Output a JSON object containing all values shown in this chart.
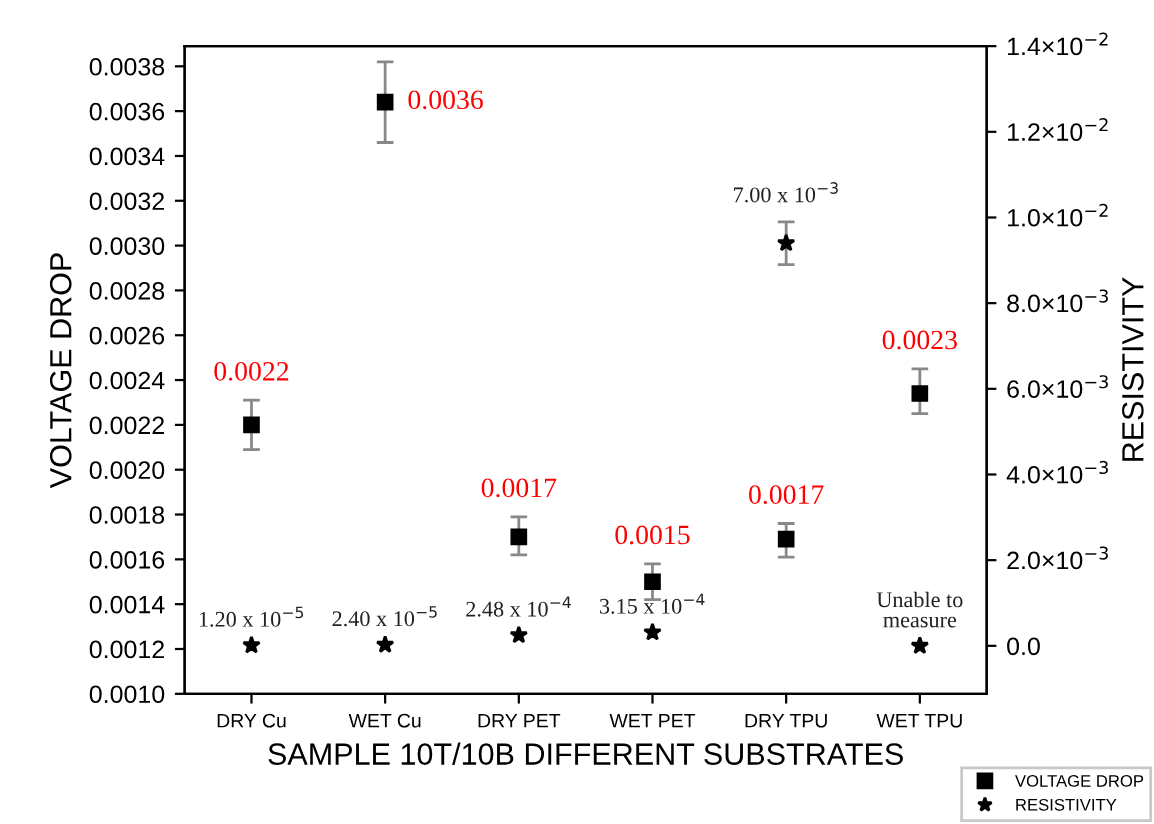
{
  "chart_data": {
    "type": "scatter",
    "xlabel": "SAMPLE 10T/10B DIFFERENT SUBSTRATES",
    "ylabel": "VOLTAGE DROP",
    "y2label": "RESISTIVITY",
    "categories": [
      "DRY Cu",
      "WET Cu",
      "DRY PET",
      "WET PET",
      "DRY TPU",
      "WET TPU"
    ],
    "series": [
      {
        "name": "VOLTAGE DROP",
        "color": "#000000",
        "marker": "square",
        "axis": "y",
        "values": [
          0.0022,
          0.00364,
          0.0017,
          0.0015,
          0.00169,
          0.00234
        ],
        "errors": [
          [
            0.00209,
            0.00231
          ],
          [
            0.00346,
            0.00382
          ],
          [
            0.00162,
            0.00179
          ],
          [
            0.00142,
            0.00158
          ],
          [
            0.00161,
            0.00176
          ],
          [
            0.00225,
            0.00245
          ]
        ],
        "value_labels": [
          "0.0022",
          "0.0036",
          "0.0017",
          "0.0015",
          "0.0017",
          "0.0023"
        ]
      },
      {
        "name": "RESISTIVITY",
        "color": "#000000",
        "marker": "star",
        "axis": "y2",
        "values": [
          1.2e-05,
          2.4e-05,
          0.000248,
          0.000315,
          0.0094,
          0.0
        ],
        "errors": [
          null,
          null,
          null,
          null,
          [
            0.0089,
            0.0099
          ],
          null
        ],
        "value_labels": [
          "1.20 x 10$^{−5}$",
          "2.40 x 10$^{−5}$",
          "2.48 x 10$^{−4}$",
          "3.15 x 10$^{−4}$",
          null,
          "Unable to\nmeasure"
        ]
      }
    ],
    "annotations": [
      "7.00 x 10$^{−3}$"
    ],
    "ylim": [
      0.001,
      0.00389
    ],
    "yticks": [
      {
        "value": 0.001,
        "label": "0.0010"
      },
      {
        "value": 0.0012,
        "label": "0.0012"
      },
      {
        "value": 0.0014,
        "label": "0.0014"
      },
      {
        "value": 0.0016,
        "label": "0.0016"
      },
      {
        "value": 0.0018,
        "label": "0.0018"
      },
      {
        "value": 0.002,
        "label": "0.0020"
      },
      {
        "value": 0.0022,
        "label": "0.0022"
      },
      {
        "value": 0.0024,
        "label": "0.0024"
      },
      {
        "value": 0.0026,
        "label": "0.0026"
      },
      {
        "value": 0.0028,
        "label": "0.0028"
      },
      {
        "value": 0.003,
        "label": "0.0030"
      },
      {
        "value": 0.0032,
        "label": "0.0032"
      },
      {
        "value": 0.0034,
        "label": "0.0034"
      },
      {
        "value": 0.0036,
        "label": "0.0036"
      },
      {
        "value": 0.0038,
        "label": "0.0038"
      }
    ],
    "y2lim": [
      -0.00112,
      0.014
    ],
    "y2ticks": [
      {
        "value": 0.0,
        "label": "0.0"
      },
      {
        "value": 0.002,
        "label": "2.0×10$^{−3}$"
      },
      {
        "value": 0.004,
        "label": "4.0×10$^{−3}$"
      },
      {
        "value": 0.006,
        "label": "6.0×10$^{−3}$"
      },
      {
        "value": 0.008,
        "label": "8.0×10$^{−3}$"
      },
      {
        "value": 0.01,
        "label": "1.0×10$^{−2}$"
      },
      {
        "value": 0.012,
        "label": "1.2×10$^{−2}$"
      },
      {
        "value": 0.014,
        "label": "1.4×10$^{−2}$"
      }
    ],
    "grid": false,
    "legend": "bottom right"
  }
}
